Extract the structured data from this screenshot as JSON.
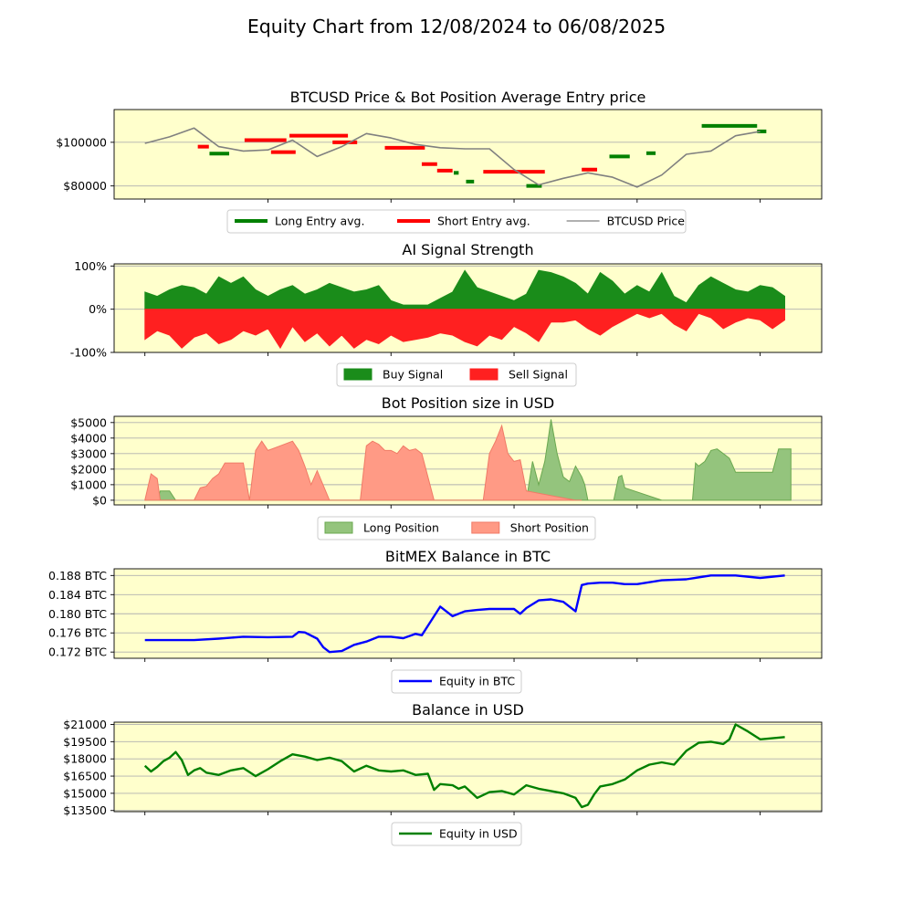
{
  "page_title": "Equity Chart from 12/08/2024 to 06/08/2025",
  "colors": {
    "plot_bg": "#ffffcc",
    "long": "#008000",
    "short": "#ff0000",
    "price": "#808080",
    "buy_fill": "#1a8c1a",
    "sell_fill": "#ff2020",
    "long_area": "#94c47d",
    "short_area": "#ff9a85",
    "btc_equity": "#0000ff",
    "usd_equity": "#008000"
  },
  "chart_data": [
    {
      "type": "line",
      "title": "BTCUSD Price & Bot Position Average Entry price",
      "ylim": [
        74000,
        115000
      ],
      "y_ticks": [
        80000,
        100000
      ],
      "y_tick_labels": [
        "$80000",
        "$100000"
      ],
      "grid": "horizontal",
      "legend_position": "bottom-center",
      "x": [
        0,
        4,
        8,
        12,
        16,
        20,
        24,
        28,
        32,
        36,
        40,
        44,
        48,
        52,
        56,
        60,
        64,
        68,
        72,
        76,
        80,
        84,
        88,
        92,
        96,
        100
      ],
      "series": [
        {
          "name": "BTCUSD Price",
          "values": [
            99500,
            102500,
            106500,
            98000,
            96000,
            96500,
            101000,
            93500,
            98000,
            104000,
            102000,
            99000,
            97500,
            97000,
            97000,
            87500,
            80500,
            83500,
            86000,
            84000,
            79500,
            85000,
            94500,
            96000,
            103000,
            105000
          ]
        },
        {
          "name": "Long Entry avg.",
          "segments": [
            {
              "x": [
                10.5,
                13.7
              ],
              "value": 94800
            },
            {
              "x": [
                50.2,
                51.0
              ],
              "value": 86000
            },
            {
              "x": [
                52.2,
                53.5
              ],
              "value": 82000
            },
            {
              "x": [
                62.0,
                64.5
              ],
              "value": 80000
            },
            {
              "x": [
                75.5,
                78.8
              ],
              "value": 93500
            },
            {
              "x": [
                81.5,
                83.0
              ],
              "value": 95000
            },
            {
              "x": [
                90.5,
                99.5
              ],
              "value": 107500
            },
            {
              "x": [
                99.5,
                101
              ],
              "value": 105000
            }
          ]
        },
        {
          "name": "Short Entry avg.",
          "segments": [
            {
              "x": [
                8.6,
                10.4
              ],
              "value": 98000
            },
            {
              "x": [
                16.2,
                23.0
              ],
              "value": 101000
            },
            {
              "x": [
                20.5,
                24.5
              ],
              "value": 95500
            },
            {
              "x": [
                23.5,
                33.0
              ],
              "value": 103000
            },
            {
              "x": [
                30.5,
                34.5
              ],
              "value": 100000
            },
            {
              "x": [
                39.0,
                45.5
              ],
              "value": 97500
            },
            {
              "x": [
                45.0,
                47.5
              ],
              "value": 90000
            },
            {
              "x": [
                47.5,
                50.0
              ],
              "value": 87000
            },
            {
              "x": [
                55.0,
                65.0
              ],
              "value": 86500
            },
            {
              "x": [
                71.0,
                73.5
              ],
              "value": 87500
            }
          ]
        }
      ]
    },
    {
      "type": "area",
      "title": "AI Signal Strength",
      "ylim": [
        -100,
        105
      ],
      "y_ticks": [
        -100,
        0,
        100
      ],
      "y_tick_labels": [
        "-100%",
        "0%",
        "100%"
      ],
      "grid": "horizontal",
      "legend_position": "bottom-center",
      "x": [
        0,
        2,
        4,
        6,
        8,
        10,
        12,
        14,
        16,
        18,
        20,
        22,
        24,
        26,
        28,
        30,
        32,
        34,
        36,
        38,
        40,
        42,
        44,
        46,
        48,
        50,
        52,
        54,
        56,
        58,
        60,
        62,
        64,
        66,
        68,
        70,
        72,
        74,
        76,
        78,
        80,
        82,
        84,
        86,
        88,
        90,
        92,
        94,
        96,
        98,
        100,
        102,
        104
      ],
      "series": [
        {
          "name": "Buy Signal",
          "values": [
            40,
            30,
            45,
            55,
            50,
            35,
            75,
            60,
            75,
            45,
            30,
            45,
            55,
            35,
            45,
            60,
            50,
            40,
            45,
            55,
            20,
            10,
            10,
            10,
            25,
            40,
            90,
            50,
            40,
            30,
            20,
            35,
            90,
            85,
            75,
            60,
            35,
            85,
            65,
            35,
            55,
            40,
            85,
            30,
            15,
            55,
            75,
            60,
            45,
            40,
            55,
            50,
            30
          ]
        },
        {
          "name": "Sell Signal",
          "values": [
            -70,
            -50,
            -60,
            -90,
            -65,
            -55,
            -80,
            -70,
            -50,
            -60,
            -45,
            -90,
            -40,
            -75,
            -55,
            -85,
            -60,
            -90,
            -70,
            -80,
            -60,
            -75,
            -70,
            -65,
            -55,
            -60,
            -75,
            -85,
            -60,
            -70,
            -40,
            -55,
            -75,
            -30,
            -30,
            -25,
            -45,
            -60,
            -40,
            -25,
            -10,
            -20,
            -10,
            -35,
            -50,
            -10,
            -20,
            -45,
            -30,
            -20,
            -25,
            -45,
            -25
          ]
        }
      ]
    },
    {
      "type": "area",
      "title": "Bot Position size in USD",
      "ylim": [
        -300,
        5400
      ],
      "y_ticks": [
        0,
        1000,
        2000,
        3000,
        4000,
        5000
      ],
      "y_tick_labels": [
        "$0",
        "$1000",
        "$2000",
        "$3000",
        "$4000",
        "$5000"
      ],
      "grid": "horizontal",
      "legend_position": "bottom-center",
      "series": [
        {
          "name": "Long Position",
          "x": [
            0,
            2,
            2.5,
            4,
            5,
            5.5,
            6,
            6.5,
            8,
            9,
            12,
            13,
            19.5,
            20,
            20.2,
            21,
            29.5,
            30,
            30.5,
            31,
            47,
            48,
            48.5,
            49,
            49.5,
            50,
            50.5,
            55,
            62,
            63,
            64,
            65,
            65.5,
            66,
            67,
            68,
            69,
            70,
            71,
            71.5,
            72,
            75,
            75.5,
            76,
            76.2,
            77,
            77.5,
            78,
            84,
            84.5,
            85,
            85.2,
            86,
            86.2,
            87,
            89,
            89.5,
            90,
            91,
            92,
            93,
            94,
            95,
            96,
            97,
            98,
            99,
            100,
            101,
            102,
            103,
            104,
            105
          ],
          "values": [
            0,
            0,
            600,
            600,
            0,
            0,
            0,
            0,
            0,
            0,
            0,
            0,
            0,
            0,
            0,
            0,
            0,
            0,
            0,
            0,
            0,
            0,
            0,
            0,
            0,
            0,
            0,
            0,
            0,
            2500,
            1000,
            2500,
            3800,
            5200,
            3000,
            1500,
            1200,
            2200,
            1500,
            1000,
            0,
            0,
            0,
            0,
            0,
            1500,
            1600,
            800,
            0,
            0,
            0,
            0,
            0,
            0,
            0,
            0,
            2400,
            2200,
            2500,
            3200,
            3300,
            3000,
            2700,
            1800,
            1800,
            1800,
            1800,
            1800,
            1800,
            1800,
            3300,
            3300,
            3300
          ]
        },
        {
          "name": "Short Position",
          "x": [
            0,
            1,
            2,
            2.5,
            3,
            5,
            6,
            8,
            9,
            10,
            11,
            12,
            13,
            15,
            16,
            17,
            18,
            19,
            19.5,
            20,
            22,
            24,
            25,
            26,
            27,
            28,
            30,
            31,
            32,
            35,
            36,
            37,
            38,
            39,
            40,
            41,
            42,
            43,
            44,
            45,
            47,
            48,
            50,
            51,
            52,
            53,
            54,
            55,
            56,
            57,
            58,
            59,
            60,
            61,
            62,
            70,
            71
          ],
          "values": [
            0,
            1700,
            1400,
            0,
            0,
            0,
            0,
            0,
            800,
            900,
            1400,
            1700,
            2400,
            2400,
            2400,
            0,
            3200,
            3800,
            3500,
            3200,
            3500,
            3800,
            3200,
            2200,
            1000,
            1900,
            0,
            0,
            0,
            0,
            3500,
            3800,
            3600,
            3200,
            3200,
            3000,
            3500,
            3200,
            3300,
            3000,
            0,
            0,
            0,
            0,
            0,
            0,
            0,
            0,
            3000,
            3800,
            4800,
            3000,
            2500,
            2600,
            600,
            0,
            0
          ]
        }
      ]
    },
    {
      "type": "line",
      "title": "BitMEX Balance in BTC",
      "ylim": [
        0.1707,
        0.1894
      ],
      "y_ticks": [
        0.172,
        0.176,
        0.18,
        0.184,
        0.188
      ],
      "y_tick_labels": [
        "0.172 BTC",
        "0.176 BTC",
        "0.180 BTC",
        "0.184 BTC",
        "0.188 BTC"
      ],
      "grid": "horizontal",
      "legend_position": "bottom-center",
      "x": [
        0,
        4,
        8,
        12,
        16,
        20,
        24,
        25,
        26,
        28,
        29,
        30,
        32,
        34,
        36,
        38,
        40,
        42,
        44,
        45,
        46,
        48,
        50,
        52,
        54,
        56,
        58,
        60,
        61,
        62,
        64,
        66,
        68,
        70,
        71,
        72,
        74,
        76,
        78,
        80,
        84,
        88,
        92,
        96,
        100,
        104
      ],
      "series": [
        {
          "name": "Equity in BTC",
          "values": [
            0.1745,
            0.1745,
            0.1745,
            0.1748,
            0.1752,
            0.1751,
            0.1752,
            0.1762,
            0.1761,
            0.1748,
            0.173,
            0.172,
            0.1722,
            0.1735,
            0.1742,
            0.1752,
            0.1752,
            0.1749,
            0.1758,
            0.1755,
            0.1775,
            0.1815,
            0.1795,
            0.1805,
            0.1808,
            0.181,
            0.181,
            0.181,
            0.18,
            0.1812,
            0.1828,
            0.183,
            0.1825,
            0.1805,
            0.186,
            0.1863,
            0.1865,
            0.1865,
            0.1862,
            0.1862,
            0.187,
            0.1872,
            0.188,
            0.188,
            0.1875,
            0.188
          ]
        }
      ]
    },
    {
      "type": "line",
      "title": "Balance in USD",
      "ylim": [
        13400,
        21200
      ],
      "y_ticks": [
        13500,
        15000,
        16500,
        18000,
        19500,
        21000
      ],
      "y_tick_labels": [
        "$13500",
        "$15000",
        "$16500",
        "$18000",
        "$19500",
        "$21000"
      ],
      "grid": "horizontal",
      "legend_position": "bottom-center",
      "x": [
        0,
        1,
        2,
        3,
        4,
        5,
        6,
        7,
        8,
        9,
        10,
        12,
        14,
        16,
        18,
        20,
        22,
        24,
        26,
        28,
        30,
        32,
        34,
        36,
        38,
        40,
        42,
        44,
        46,
        47,
        48,
        50,
        51,
        52,
        54,
        56,
        58,
        60,
        62,
        64,
        66,
        68,
        70,
        71,
        72,
        73,
        74,
        76,
        78,
        80,
        82,
        84,
        86,
        88,
        90,
        92,
        94,
        95,
        96,
        98,
        100,
        102,
        104
      ],
      "series": [
        {
          "name": "Equity in USD",
          "values": [
            17400,
            16900,
            17300,
            17800,
            18100,
            18600,
            17900,
            16600,
            17000,
            17200,
            16800,
            16600,
            17000,
            17200,
            16500,
            17100,
            17800,
            18400,
            18200,
            17900,
            18100,
            17800,
            16900,
            17400,
            17000,
            16900,
            17000,
            16600,
            16700,
            15300,
            15800,
            15700,
            15400,
            15600,
            14600,
            15100,
            15200,
            14900,
            15700,
            15400,
            15200,
            15000,
            14600,
            13800,
            14000,
            14900,
            15600,
            15800,
            16200,
            17000,
            17500,
            17700,
            17500,
            18700,
            19400,
            19500,
            19300,
            19700,
            21000,
            20400,
            19700,
            19800,
            19900
          ]
        }
      ]
    }
  ],
  "x_axis": {
    "range": [
      -5,
      110
    ],
    "ticks": [
      0,
      20,
      40,
      60,
      80,
      100
    ]
  }
}
